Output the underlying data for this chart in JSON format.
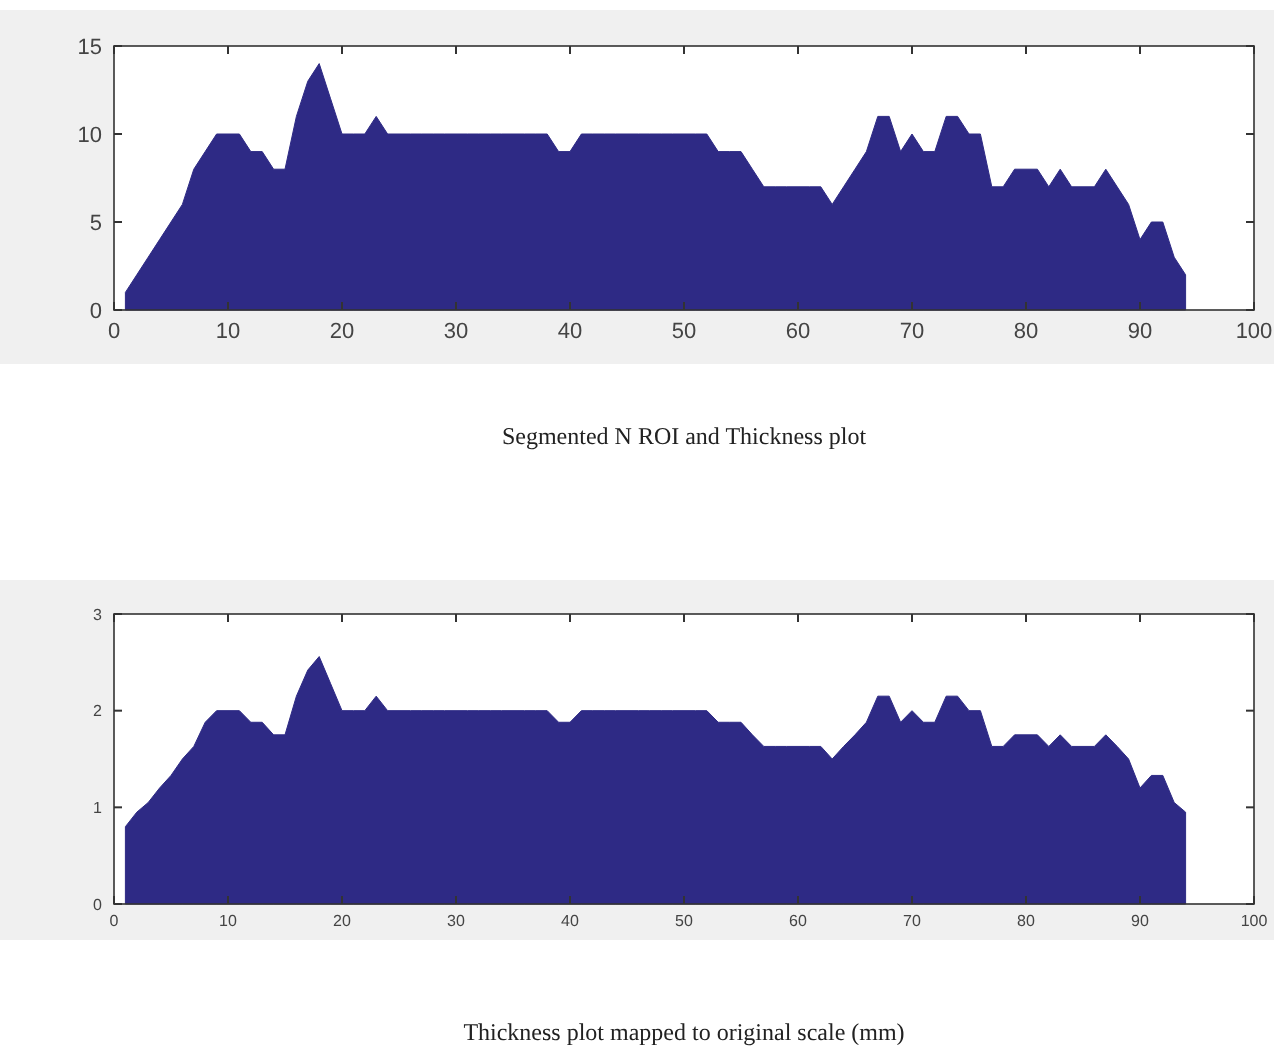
{
  "chart_data": [
    {
      "type": "area",
      "annotations": [
        "Segmented N ROI and Thickness plot"
      ],
      "xlim": [
        0,
        100
      ],
      "xticks": [
        0,
        10,
        20,
        30,
        40,
        50,
        60,
        70,
        80,
        90,
        100
      ],
      "ylim": [
        0,
        15
      ],
      "yticks": [
        0,
        5,
        10,
        15
      ],
      "grid": false,
      "series": [
        {
          "color": "#2e2a85",
          "x": [
            1,
            2,
            3,
            4,
            5,
            6,
            7,
            8,
            9,
            10,
            11,
            12,
            13,
            14,
            15,
            16,
            17,
            18,
            19,
            20,
            21,
            22,
            23,
            24,
            25,
            26,
            27,
            28,
            29,
            30,
            31,
            32,
            33,
            34,
            35,
            36,
            37,
            38,
            39,
            40,
            41,
            42,
            43,
            44,
            45,
            46,
            47,
            48,
            49,
            50,
            51,
            52,
            53,
            54,
            55,
            56,
            57,
            58,
            59,
            60,
            61,
            62,
            63,
            64,
            65,
            66,
            67,
            68,
            69,
            70,
            71,
            72,
            73,
            74,
            75,
            76,
            77,
            78,
            79,
            80,
            81,
            82,
            83,
            84,
            85,
            86,
            87,
            88,
            89,
            90,
            91,
            92,
            93,
            94
          ],
          "values": [
            1,
            2,
            3,
            4,
            5,
            6,
            8,
            9,
            10,
            10,
            10,
            9,
            9,
            8,
            8,
            11,
            13,
            14,
            12,
            10,
            10,
            10,
            11,
            10,
            10,
            10,
            10,
            10,
            10,
            10,
            10,
            10,
            10,
            10,
            10,
            10,
            10,
            10,
            9,
            9,
            10,
            10,
            10,
            10,
            10,
            10,
            10,
            10,
            10,
            10,
            10,
            10,
            9,
            9,
            9,
            8,
            7,
            7,
            7,
            7,
            7,
            7,
            6,
            7,
            8,
            9,
            11,
            11,
            9,
            10,
            9,
            9,
            11,
            11,
            10,
            10,
            7,
            7,
            8,
            8,
            8,
            7,
            8,
            7,
            7,
            7,
            8,
            7,
            6,
            4,
            5,
            5,
            3,
            2
          ]
        }
      ]
    },
    {
      "type": "area",
      "annotations": [
        "Thickness plot mapped to original scale (mm)"
      ],
      "xlim": [
        0,
        100
      ],
      "xticks": [
        0,
        10,
        20,
        30,
        40,
        50,
        60,
        70,
        80,
        90,
        100
      ],
      "ylim": [
        0,
        3
      ],
      "yticks": [
        0,
        1,
        2,
        3
      ],
      "grid": false,
      "series": [
        {
          "color": "#2e2a85",
          "x": [
            1,
            2,
            3,
            4,
            5,
            6,
            7,
            8,
            9,
            10,
            11,
            12,
            13,
            14,
            15,
            16,
            17,
            18,
            19,
            20,
            21,
            22,
            23,
            24,
            25,
            26,
            27,
            28,
            29,
            30,
            31,
            32,
            33,
            34,
            35,
            36,
            37,
            38,
            39,
            40,
            41,
            42,
            43,
            44,
            45,
            46,
            47,
            48,
            49,
            50,
            51,
            52,
            53,
            54,
            55,
            56,
            57,
            58,
            59,
            60,
            61,
            62,
            63,
            64,
            65,
            66,
            67,
            68,
            69,
            70,
            71,
            72,
            73,
            74,
            75,
            76,
            77,
            78,
            79,
            80,
            81,
            82,
            83,
            84,
            85,
            86,
            87,
            88,
            89,
            90,
            91,
            92,
            93,
            94
          ],
          "values": [
            0.8,
            0.95,
            1.05,
            1.2,
            1.33,
            1.5,
            1.63,
            1.88,
            2,
            2,
            2,
            1.88,
            1.88,
            1.75,
            1.75,
            2.15,
            2.42,
            2.56,
            2.28,
            2,
            2,
            2,
            2.15,
            2,
            2,
            2,
            2,
            2,
            2,
            2,
            2,
            2,
            2,
            2,
            2,
            2,
            2,
            2,
            1.88,
            1.88,
            2,
            2,
            2,
            2,
            2,
            2,
            2,
            2,
            2,
            2,
            2,
            2,
            1.88,
            1.88,
            1.88,
            1.75,
            1.63,
            1.63,
            1.63,
            1.63,
            1.63,
            1.63,
            1.5,
            1.63,
            1.75,
            1.88,
            2.15,
            2.15,
            1.88,
            2,
            1.88,
            1.88,
            2.15,
            2.15,
            2,
            2,
            1.63,
            1.63,
            1.75,
            1.75,
            1.75,
            1.63,
            1.75,
            1.63,
            1.63,
            1.63,
            1.75,
            1.63,
            1.5,
            1.2,
            1.33,
            1.33,
            1.05,
            0.95
          ]
        }
      ]
    }
  ]
}
